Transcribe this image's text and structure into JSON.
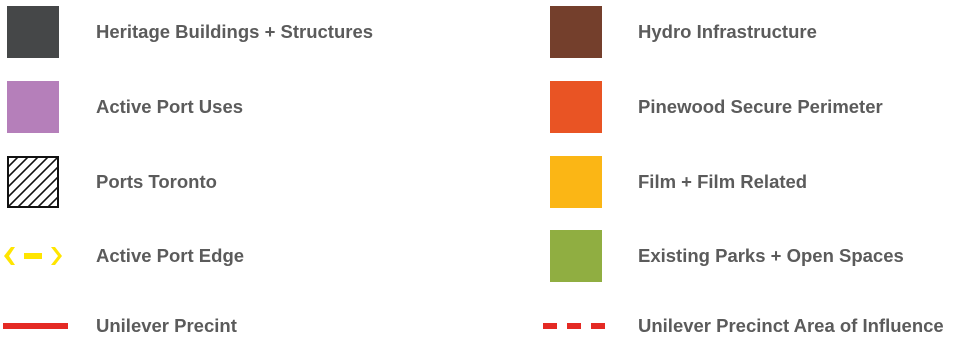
{
  "legend": {
    "left": [
      {
        "label": "Heritage Buildings + Structures",
        "symbol": "fill",
        "color": "#454748"
      },
      {
        "label": "Active Port Uses",
        "symbol": "fill",
        "color": "#b57fba"
      },
      {
        "label": "Ports Toronto",
        "symbol": "hatch",
        "color": "#111111"
      },
      {
        "label": "Active Port Edge",
        "symbol": "chevron-dash-line",
        "color": "#ffe500"
      },
      {
        "label": "Unilever Precint",
        "symbol": "solid-line",
        "color": "#e42a24"
      }
    ],
    "right": [
      {
        "label": "Hydro Infrastructure",
        "symbol": "fill",
        "color": "#743f2c"
      },
      {
        "label": "Pinewood Secure Perimeter",
        "symbol": "fill",
        "color": "#e95424"
      },
      {
        "label": "Film + Film Related",
        "symbol": "fill",
        "color": "#fbb615"
      },
      {
        "label": "Existing Parks + Open Spaces",
        "symbol": "fill",
        "color": "#90ae41"
      },
      {
        "label": "Unilever Precinct Area of Influence",
        "symbol": "dashed-line",
        "color": "#e42a24"
      }
    ]
  }
}
